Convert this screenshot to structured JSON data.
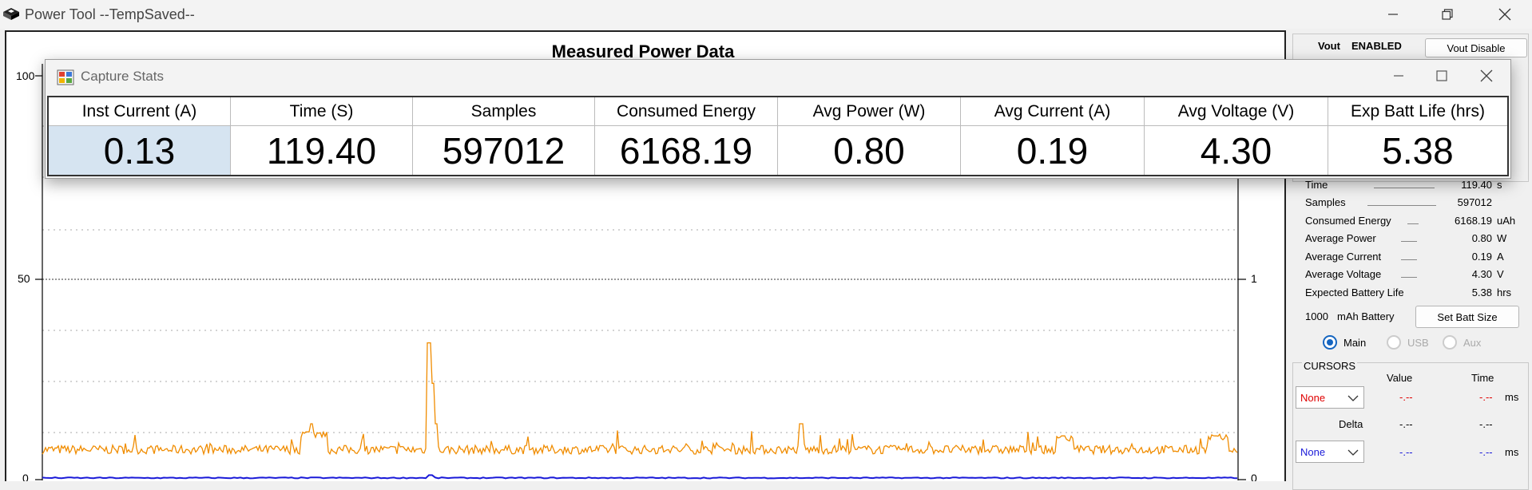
{
  "window": {
    "title": "Power Tool --TempSaved--",
    "icon": "app-logo-icon",
    "controls": [
      "minimize-icon",
      "restore-icon",
      "close-icon"
    ]
  },
  "chart_data": {
    "type": "line",
    "title": "Measured Power Data",
    "left_axis": {
      "ticks": [
        "100",
        "50",
        "0"
      ],
      "range": [
        0,
        100
      ]
    },
    "right_axis": {
      "ticks": [
        "1",
        "0"
      ]
    },
    "grid": "dotted horizontal",
    "series": [
      {
        "color": "#f08c00",
        "description_level": "approx 5-10 on left scale with spikes to ~20"
      },
      {
        "color": "#1a1ad8",
        "description_level": "near 0"
      }
    ]
  },
  "dialog": {
    "title": "Capture Stats",
    "icon": "capture-stats-icon",
    "columns": [
      {
        "header": "Inst Current (A)",
        "value": "0.13"
      },
      {
        "header": "Time (S)",
        "value": "119.40"
      },
      {
        "header": "Samples",
        "value": "597012"
      },
      {
        "header": "Consumed Energy",
        "value": "6168.19"
      },
      {
        "header": "Avg Power (W)",
        "value": "0.80"
      },
      {
        "header": "Avg Current (A)",
        "value": "0.19"
      },
      {
        "header": "Avg Voltage (V)",
        "value": "4.30"
      },
      {
        "header": "Exp Batt Life (hrs)",
        "value": "5.38"
      }
    ]
  },
  "panel": {
    "vout_label": "Vout",
    "vout_state": "ENABLED",
    "vout_button": "Vout Disable",
    "stats": [
      {
        "label": "Time",
        "value": "119.40",
        "unit": "s"
      },
      {
        "label": "Samples",
        "value": "597012",
        "unit": ""
      },
      {
        "label": "Consumed Energy",
        "value": "6168.19",
        "unit": "uAh"
      },
      {
        "label": "Average Power",
        "value": "0.80",
        "unit": "W"
      },
      {
        "label": "Average Current",
        "value": "0.19",
        "unit": "A"
      },
      {
        "label": "Average Voltage",
        "value": "4.30",
        "unit": "V"
      },
      {
        "label": "Expected Battery Life",
        "value": "5.38",
        "unit": "hrs"
      }
    ],
    "battery_value": "1000",
    "battery_label": "mAh Battery",
    "battery_button": "Set Batt Size",
    "radios": [
      {
        "label": "Main",
        "selected": true
      },
      {
        "label": "USB",
        "selected": false
      },
      {
        "label": "Aux",
        "selected": false
      }
    ],
    "cursors": {
      "title": "CURSORS",
      "value_header": "Value",
      "time_header": "Time",
      "cursor1_select": "None",
      "cursor1_value": "-.--",
      "cursor1_time": "-.--",
      "cursor1_unit": "ms",
      "delta_label": "Delta",
      "delta_value": "-.--",
      "delta_time": "-.--",
      "cursor2_select": "None",
      "cursor2_value": "-.--",
      "cursor2_time": "-.--",
      "cursor2_unit": "ms",
      "cursor1_color": "#e00000",
      "cursor2_color": "#1a1ad8"
    }
  }
}
